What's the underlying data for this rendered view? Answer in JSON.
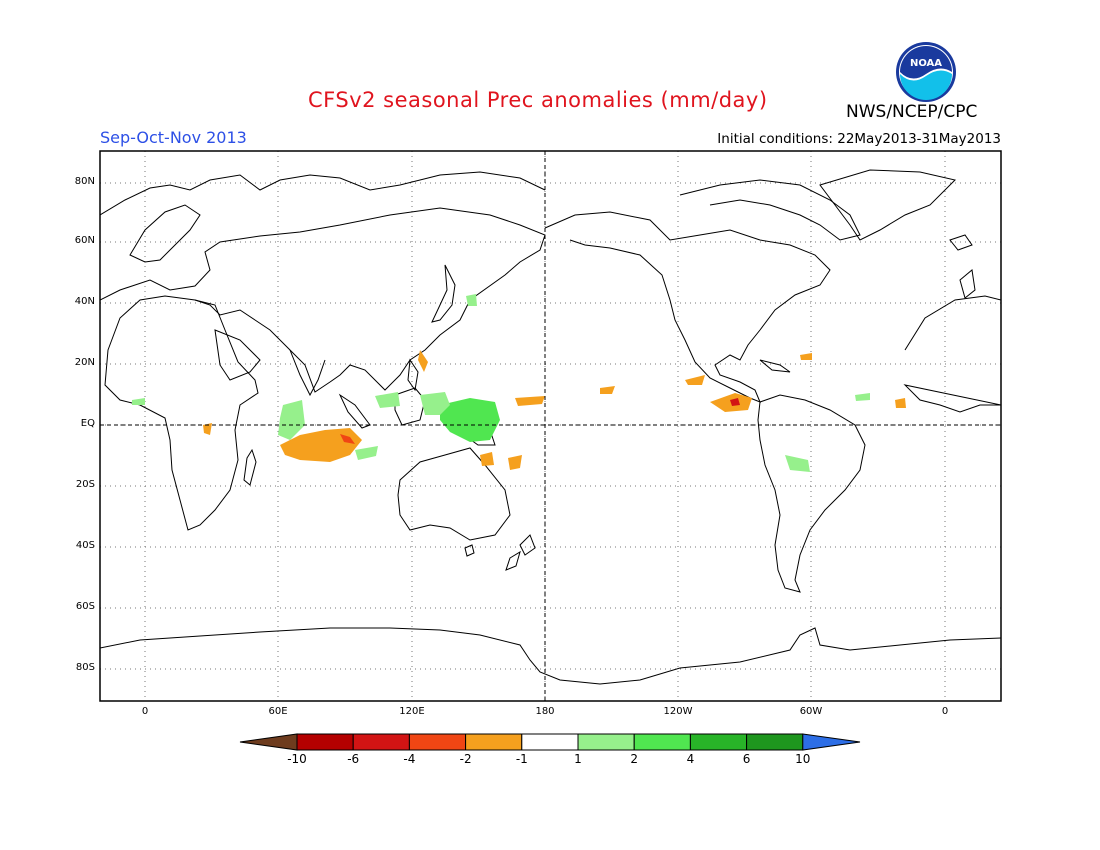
{
  "header": {
    "title": "CFSv2 seasonal Prec anomalies (mm/day)",
    "agency": "NWS/NCEP/CPC",
    "season": "Sep-Oct-Nov 2013",
    "initial_conditions": "Initial conditions: 22May2013-31May2013"
  },
  "colors": {
    "title": "#e0141e",
    "season": "#2d50e6",
    "text": "#000000"
  },
  "logo": {
    "icon": "noaa-logo",
    "text": "NOAA"
  },
  "map": {
    "projection": "cylindrical-equidistant",
    "center_longitude": 180,
    "grid": "dotted",
    "y_ticks": [
      "80N",
      "60N",
      "40N",
      "20N",
      "EQ",
      "20S",
      "40S",
      "60S",
      "80S"
    ],
    "x_ticks": [
      "0",
      "60E",
      "120E",
      "180",
      "120W",
      "60W",
      "0"
    ],
    "features": [
      "coastlines",
      "equator-dashed",
      "dateline-dashed"
    ]
  },
  "anomaly_regions": [
    {
      "sign": "dry",
      "region": "Eastern tropical Indian Ocean / south of Sumatra",
      "level": "-2 to -4"
    },
    {
      "sign": "dry",
      "region": "Western tropical Pacific near Philippines",
      "level": "-1 to -2"
    },
    {
      "sign": "dry",
      "region": "Southwest Pacific east of New Guinea",
      "level": "-1 to -2"
    },
    {
      "sign": "dry",
      "region": "Eastern Pacific off Central America",
      "level": "-2 to -4"
    },
    {
      "sign": "wet",
      "region": "Maritime Continent / New Guinea",
      "level": "1 to 4"
    },
    {
      "sign": "wet",
      "region": "Western Indian Ocean",
      "level": "1 to 2"
    },
    {
      "sign": "wet",
      "region": "Northwest Pacific east of Japan",
      "level": "1 to 2"
    },
    {
      "sign": "wet",
      "region": "Central South America",
      "level": "1 to 2"
    }
  ],
  "colorbar": {
    "labels": [
      "-10",
      "-6",
      "-4",
      "-2",
      "-1",
      "1",
      "2",
      "4",
      "6",
      "10"
    ],
    "colors": [
      "#6e3c1e",
      "#b40000",
      "#d21414",
      "#f04614",
      "#f5a01e",
      "#ffffff",
      "#96f08c",
      "#50e650",
      "#28b428",
      "#1e961e",
      "#2d6ee6"
    ]
  }
}
